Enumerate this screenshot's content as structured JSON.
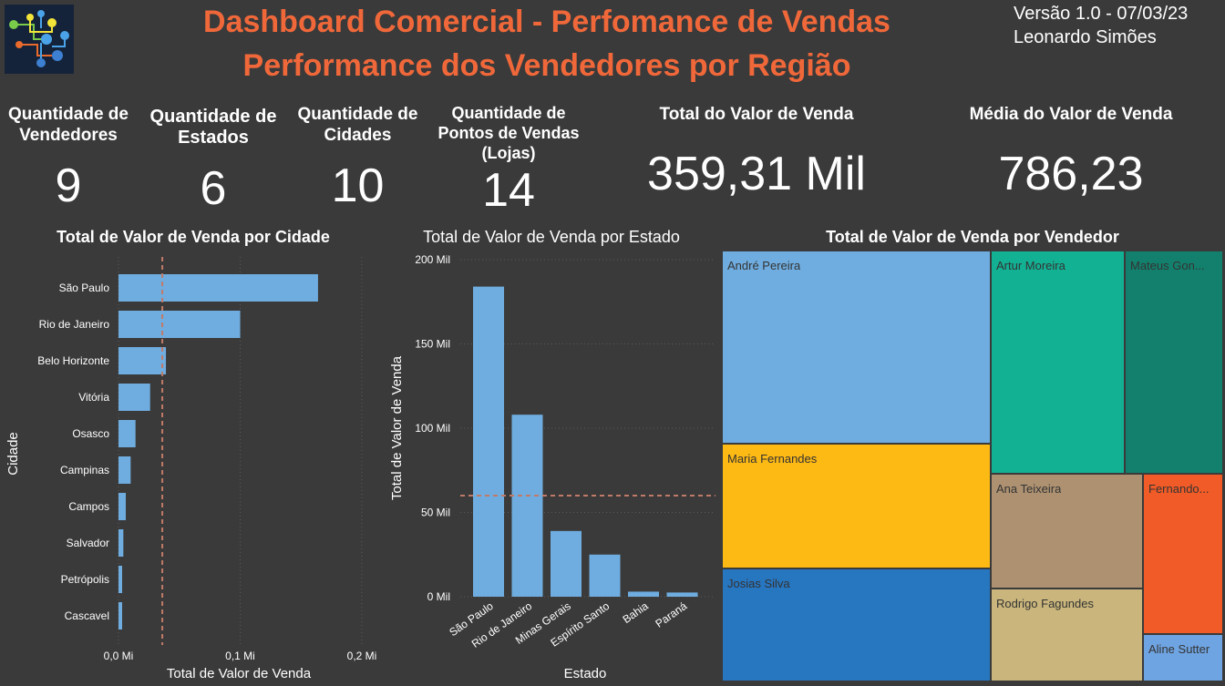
{
  "header": {
    "title_line1": "Dashboard Comercial - Perfomance de Vendas",
    "title_line2": "Performance dos Vendedores por Região",
    "version": "Versão 1.0 - 07/03/23",
    "author": "Leonardo Simões"
  },
  "kpis": [
    {
      "label_lines": [
        "Quantidade de",
        "Vendedores"
      ],
      "value": "9"
    },
    {
      "label_lines": [
        "Quantidade de",
        "Estados"
      ],
      "value": "6"
    },
    {
      "label_lines": [
        "Quantidade de",
        "Cidades"
      ],
      "value": "10"
    },
    {
      "label_lines": [
        "Quantidade de",
        "Pontos de Vendas",
        "(Lojas)"
      ],
      "value": "14"
    },
    {
      "label_lines": [
        "Total do Valor de Venda"
      ],
      "value": "359,31 Mil"
    },
    {
      "label_lines": [
        "Média do Valor de Venda"
      ],
      "value": "786,23"
    }
  ],
  "colors": {
    "background": "#3a3a3a",
    "accent": "#f0683a",
    "bar": "#6fade0",
    "reference_line": "#c07a68"
  },
  "chart_data": [
    {
      "type": "bar",
      "orientation": "horizontal",
      "title": "Total de Valor de Venda por Cidade",
      "xlabel": "Total de Valor de Venda",
      "ylabel": "Cidade",
      "categories": [
        "São Paulo",
        "Rio de Janeiro",
        "Belo Horizonte",
        "Vitória",
        "Osasco",
        "Campinas",
        "Campos",
        "Salvador",
        "Petrópolis",
        "Cascavel"
      ],
      "values": [
        0.164,
        0.1,
        0.039,
        0.026,
        0.014,
        0.01,
        0.006,
        0.004,
        0.003,
        0.003
      ],
      "xlim": [
        0,
        0.2
      ],
      "xticks": [
        0,
        0.1,
        0.2
      ],
      "xtick_labels": [
        "0,0 Mi",
        "0,1 Mi",
        "0,2 Mi"
      ],
      "reference_line": 0.036,
      "grid": true
    },
    {
      "type": "bar",
      "title": "Total de Valor de Venda por Estado",
      "xlabel": "Estado",
      "ylabel": "Total de Valor de Venda",
      "categories": [
        "São Paulo",
        "Rio de Janeiro",
        "Minas Gerais",
        "Espírito Santo",
        "Bahia",
        "Paraná"
      ],
      "values": [
        184,
        108,
        39,
        25,
        3,
        2.5
      ],
      "ylim": [
        0,
        200
      ],
      "yticks": [
        0,
        50,
        100,
        150,
        200
      ],
      "ytick_labels": [
        "0 Mil",
        "50 Mil",
        "100 Mil",
        "150 Mil",
        "200 Mil"
      ],
      "reference_line": 60,
      "grid": true
    },
    {
      "type": "treemap",
      "title": "Total de Valor de Venda por Vendedor",
      "items": [
        {
          "name": "André Pereira",
          "color": "#6fade0"
        },
        {
          "name": "Maria Fernandes",
          "color": "#fdb914"
        },
        {
          "name": "Josias Silva",
          "color": "#2776c0"
        },
        {
          "name": "Artur Moreira",
          "color": "#13b194"
        },
        {
          "name": "Mateus Gon...",
          "color": "#13806d"
        },
        {
          "name": "Ana Teixeira",
          "color": "#ad9171"
        },
        {
          "name": "Rodrigo Fagundes",
          "color": "#cab67c"
        },
        {
          "name": "Fernando...",
          "color": "#f15b27"
        },
        {
          "name": "Aline Sutter",
          "color": "#6fa4e2"
        }
      ]
    }
  ]
}
